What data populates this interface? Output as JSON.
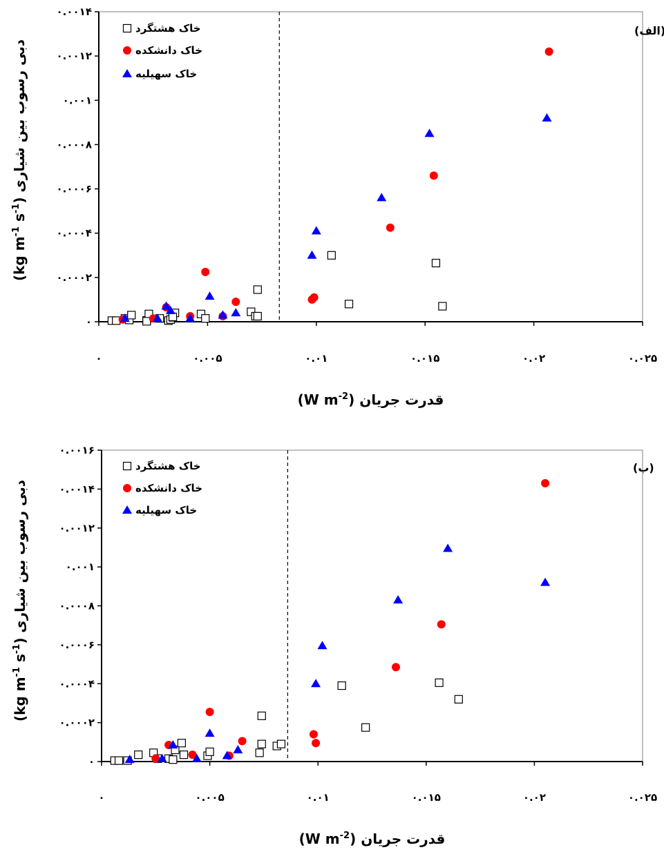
{
  "colors": {
    "red_marker": "#ff0000",
    "blue_marker": "#0000ff",
    "square_marker": "#000000"
  },
  "chart_data": [
    {
      "type": "scatter",
      "panel_label": "(الف)",
      "xlabel_text": "قدرت جریان ",
      "xlabel_unit": "(W m",
      "xlabel_sup": "-2",
      "xlabel_close": ")",
      "ylabel_text": "دبی رسوب بین شیاری",
      "ylabel_unit": "(kg m",
      "ylabel_sup1": "-1",
      "ylabel_mid": " s",
      "ylabel_sup2": "-1",
      "ylabel_close": ")",
      "xlim": [
        0,
        0.025
      ],
      "ylim": [
        0,
        0.0014
      ],
      "x_ticks": [
        0,
        0.005,
        0.01,
        0.015,
        0.02,
        0.025
      ],
      "x_tick_labels": [
        "۰",
        "۰.۰۰۵",
        "۰.۰۱",
        "۰.۰۱۵",
        "۰.۰۲",
        "۰.۰۲۵"
      ],
      "y_ticks": [
        0,
        0.0002,
        0.0004,
        0.0006,
        0.0008,
        0.001,
        0.0012,
        0.0014
      ],
      "y_tick_labels": [
        "۰",
        "۰.۰۰۰۲",
        "۰.۰۰۰۴",
        "۰.۰۰۰۶",
        "۰.۰۰۰۸",
        "۰.۰۰۱",
        "۰.۰۰۱۲",
        "۰.۰۰۱۴"
      ],
      "threshold_x": 0.0083,
      "legend_position": "top-left",
      "series": [
        {
          "name": "خاک هشتگرد",
          "marker": "square",
          "points": [
            [
              0.0006,
              5e-06
            ],
            [
              0.0008,
              5e-06
            ],
            [
              0.0012,
              1.5e-05
            ],
            [
              0.0014,
              8e-06
            ],
            [
              0.0015,
              3e-05
            ],
            [
              0.0022,
              6e-06
            ],
            [
              0.0023,
              3.5e-05
            ],
            [
              0.0022,
              2e-06
            ],
            [
              0.0028,
              1.5e-05
            ],
            [
              0.0032,
              5e-06
            ],
            [
              0.0033,
              1e-05
            ],
            [
              0.0034,
              2e-05
            ],
            [
              0.0035,
              4e-05
            ],
            [
              0.0034,
              2.2e-05
            ],
            [
              0.0047,
              3.5e-05
            ],
            [
              0.0049,
              1.5e-05
            ],
            [
              0.007,
              4.5e-05
            ],
            [
              0.0072,
              2.5e-05
            ],
            [
              0.0073,
              2.5e-05
            ],
            [
              0.0073,
              0.000145
            ],
            [
              0.0107,
              0.0003
            ],
            [
              0.0115,
              8e-05
            ],
            [
              0.0155,
              0.000265
            ],
            [
              0.0158,
              7e-05
            ]
          ]
        },
        {
          "name": "خاک دانشکده",
          "marker": "circle",
          "points": [
            [
              0.0011,
              1e-05
            ],
            [
              0.0025,
              1.5e-05
            ],
            [
              0.0031,
              6.5e-05
            ],
            [
              0.0042,
              2.5e-05
            ],
            [
              0.0049,
              0.000225
            ],
            [
              0.0057,
              2.5e-05
            ],
            [
              0.0063,
              9e-05
            ],
            [
              0.0098,
              0.0001
            ],
            [
              0.0099,
              0.00011
            ],
            [
              0.0134,
              0.000425
            ],
            [
              0.0154,
              0.00066
            ],
            [
              0.0207,
              0.00122
            ]
          ]
        },
        {
          "name": "خاک سهیلیه",
          "marker": "triangle",
          "points": [
            [
              0.0012,
              1.5e-05
            ],
            [
              0.0027,
              1.5e-05
            ],
            [
              0.0031,
              7e-05
            ],
            [
              0.0033,
              5e-05
            ],
            [
              0.0042,
              1.5e-05
            ],
            [
              0.0051,
              0.000115
            ],
            [
              0.0057,
              3e-05
            ],
            [
              0.0063,
              4e-05
            ],
            [
              0.0098,
              0.0003
            ],
            [
              0.01,
              0.00041
            ],
            [
              0.013,
              0.00056
            ],
            [
              0.0152,
              0.00085
            ],
            [
              0.0206,
              0.00092
            ]
          ]
        }
      ]
    },
    {
      "type": "scatter",
      "panel_label": "(ب)",
      "xlabel_text": "قدرت جریان ",
      "xlabel_unit": "(W m",
      "xlabel_sup": "-2",
      "xlabel_close": ")",
      "ylabel_text": "دبی رسوب بین شیاری",
      "ylabel_unit": "(kg m",
      "ylabel_sup1": "-1",
      "ylabel_mid": " s",
      "ylabel_sup2": "-1",
      "ylabel_close": ")",
      "xlim": [
        0,
        0.025
      ],
      "ylim": [
        0,
        0.0016
      ],
      "x_ticks": [
        0,
        0.005,
        0.01,
        0.015,
        0.02,
        0.025
      ],
      "x_tick_labels": [
        "۰",
        "۰.۰۰۵",
        "۰.۰۱",
        "۰.۰۱۵",
        "۰.۰۲",
        "۰.۰۲۵"
      ],
      "y_ticks": [
        0,
        0.0002,
        0.0004,
        0.0006,
        0.0008,
        0.001,
        0.0012,
        0.0014,
        0.0016
      ],
      "y_tick_labels": [
        "۰",
        "۰.۰۰۰۲",
        "۰.۰۰۰۴",
        "۰.۰۰۰۶",
        "۰.۰۰۰۸",
        "۰.۰۰۱",
        "۰.۰۰۱۲",
        "۰.۰۰۱۴",
        "۰.۰۰۱۶"
      ],
      "threshold_x": 0.0086,
      "legend_position": "top-left",
      "series": [
        {
          "name": "خاک هشتگرد",
          "marker": "square",
          "points": [
            [
              0.0006,
              5e-06
            ],
            [
              0.0008,
              5e-06
            ],
            [
              0.0012,
              5e-06
            ],
            [
              0.0017,
              3.5e-05
            ],
            [
              0.0024,
              4.5e-05
            ],
            [
              0.0026,
              1.5e-05
            ],
            [
              0.0031,
              1.5e-05
            ],
            [
              0.0033,
              1e-05
            ],
            [
              0.0034,
              6e-05
            ],
            [
              0.0037,
              9.5e-05
            ],
            [
              0.0038,
              3.5e-05
            ],
            [
              0.0049,
              3e-05
            ],
            [
              0.005,
              5e-05
            ],
            [
              0.0073,
              4.5e-05
            ],
            [
              0.0074,
              9e-05
            ],
            [
              0.0074,
              0.000235
            ],
            [
              0.0081,
              8e-05
            ],
            [
              0.0083,
              9e-05
            ],
            [
              0.0111,
              0.00039
            ],
            [
              0.0122,
              0.000175
            ],
            [
              0.0156,
              0.000405
            ],
            [
              0.0165,
              0.00032
            ]
          ]
        },
        {
          "name": "خاک دانشکده",
          "marker": "circle",
          "points": [
            [
              0.0025,
              1.5e-05
            ],
            [
              0.0031,
              8.5e-05
            ],
            [
              0.0042,
              3.5e-05
            ],
            [
              0.005,
              0.000255
            ],
            [
              0.0059,
              3e-05
            ],
            [
              0.0065,
              0.000105
            ],
            [
              0.0098,
              0.00014
            ],
            [
              0.0099,
              9.5e-05
            ],
            [
              0.0136,
              0.000485
            ],
            [
              0.0157,
              0.000705
            ],
            [
              0.0205,
              0.00143
            ]
          ]
        },
        {
          "name": "خاک سهیلیه",
          "marker": "triangle",
          "points": [
            [
              0.0013,
              1e-05
            ],
            [
              0.0028,
              1.5e-05
            ],
            [
              0.0033,
              8.5e-05
            ],
            [
              0.0044,
              1.5e-05
            ],
            [
              0.005,
              0.000145
            ],
            [
              0.0058,
              3e-05
            ],
            [
              0.0063,
              6e-05
            ],
            [
              0.0099,
              0.0004
            ],
            [
              0.0102,
              0.000595
            ],
            [
              0.0137,
              0.00083
            ],
            [
              0.016,
              0.001095
            ],
            [
              0.0205,
              0.00092
            ]
          ]
        }
      ]
    }
  ]
}
